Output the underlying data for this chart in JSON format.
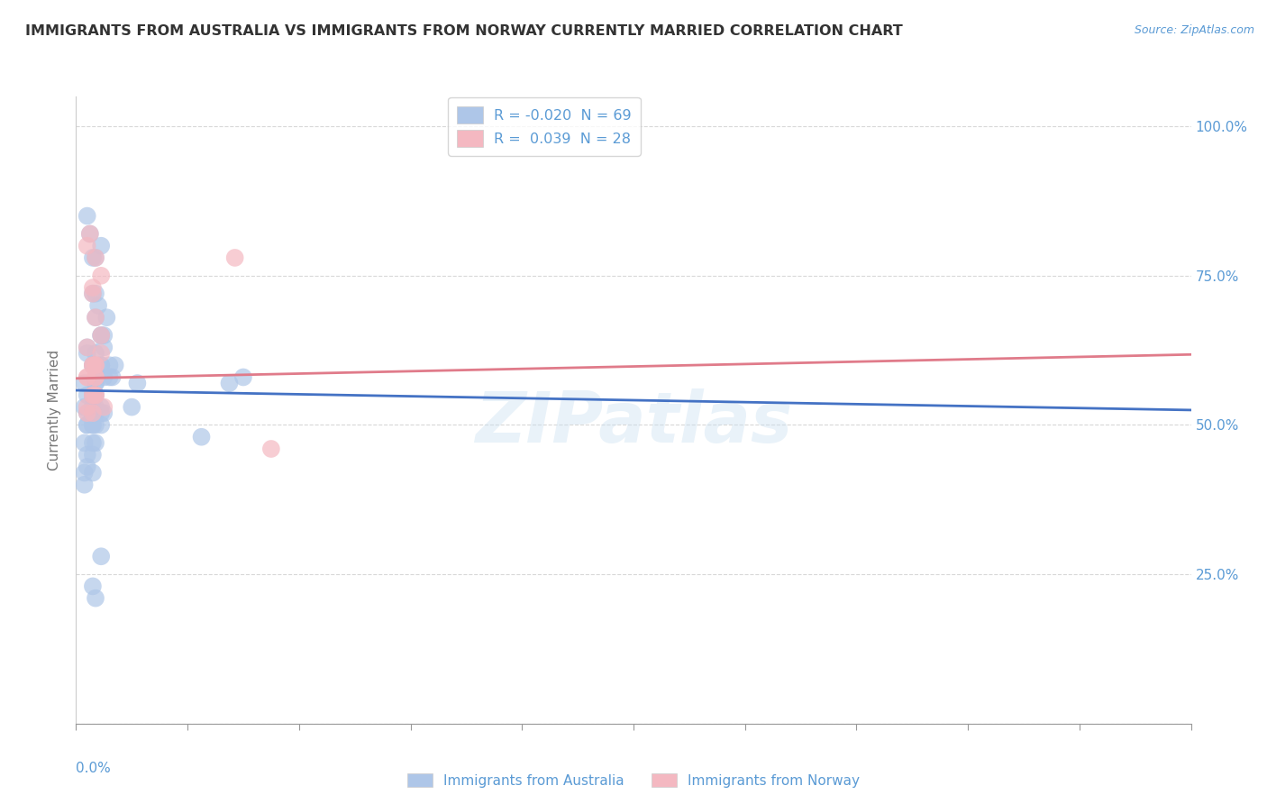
{
  "title": "IMMIGRANTS FROM AUSTRALIA VS IMMIGRANTS FROM NORWAY CURRENTLY MARRIED CORRELATION CHART",
  "source": "Source: ZipAtlas.com",
  "ylabel": "Currently Married",
  "yticks": [
    0.0,
    0.25,
    0.5,
    0.75,
    1.0
  ],
  "ytick_labels": [
    "",
    "25.0%",
    "50.0%",
    "75.0%",
    "100.0%"
  ],
  "xlim": [
    0.0,
    0.4
  ],
  "ylim": [
    0.05,
    1.05
  ],
  "blue_scatter_x": [
    0.005,
    0.007,
    0.008,
    0.004,
    0.006,
    0.007,
    0.009,
    0.01,
    0.006,
    0.007,
    0.004,
    0.009,
    0.011,
    0.006,
    0.007,
    0.009,
    0.01,
    0.012,
    0.013,
    0.014,
    0.004,
    0.006,
    0.007,
    0.009,
    0.01,
    0.003,
    0.006,
    0.007,
    0.009,
    0.012,
    0.004,
    0.006,
    0.007,
    0.004,
    0.006,
    0.007,
    0.009,
    0.006,
    0.007,
    0.009,
    0.004,
    0.006,
    0.007,
    0.003,
    0.004,
    0.006,
    0.007,
    0.022,
    0.003,
    0.006,
    0.007,
    0.004,
    0.006,
    0.003,
    0.006,
    0.007,
    0.009,
    0.01,
    0.055,
    0.007,
    0.004,
    0.02,
    0.003,
    0.006,
    0.045,
    0.06,
    0.009,
    0.006,
    0.007
  ],
  "blue_scatter_y": [
    0.82,
    0.78,
    0.7,
    0.85,
    0.78,
    0.72,
    0.8,
    0.65,
    0.72,
    0.68,
    0.62,
    0.65,
    0.68,
    0.6,
    0.62,
    0.65,
    0.63,
    0.6,
    0.58,
    0.6,
    0.63,
    0.6,
    0.58,
    0.6,
    0.58,
    0.57,
    0.55,
    0.57,
    0.6,
    0.58,
    0.55,
    0.55,
    0.53,
    0.52,
    0.53,
    0.52,
    0.53,
    0.52,
    0.5,
    0.52,
    0.5,
    0.5,
    0.52,
    0.53,
    0.5,
    0.52,
    0.55,
    0.57,
    0.47,
    0.5,
    0.52,
    0.45,
    0.47,
    0.42,
    0.45,
    0.47,
    0.5,
    0.52,
    0.57,
    0.57,
    0.43,
    0.53,
    0.4,
    0.42,
    0.48,
    0.58,
    0.28,
    0.23,
    0.21
  ],
  "pink_scatter_x": [
    0.005,
    0.007,
    0.004,
    0.006,
    0.009,
    0.006,
    0.007,
    0.009,
    0.004,
    0.006,
    0.007,
    0.006,
    0.004,
    0.007,
    0.009,
    0.006,
    0.007,
    0.004,
    0.057,
    0.07,
    0.004,
    0.007,
    0.01,
    0.006,
    0.007,
    0.004,
    0.006,
    0.007
  ],
  "pink_scatter_y": [
    0.82,
    0.78,
    0.8,
    0.73,
    0.75,
    0.72,
    0.68,
    0.65,
    0.63,
    0.6,
    0.58,
    0.55,
    0.53,
    0.58,
    0.62,
    0.6,
    0.55,
    0.52,
    0.78,
    0.46,
    0.58,
    0.55,
    0.53,
    0.52,
    0.6,
    0.58,
    0.55,
    0.6
  ],
  "blue_line_x": [
    0.0,
    0.4
  ],
  "blue_line_y": [
    0.558,
    0.525
  ],
  "pink_line_x": [
    0.0,
    0.4
  ],
  "pink_line_y": [
    0.578,
    0.618
  ],
  "background_color": "#ffffff",
  "grid_color": "#d8d8d8",
  "title_color": "#333333",
  "axis_label_color": "#5b9bd5",
  "scatter_blue": "#aec6e8",
  "scatter_pink": "#f4b8c1",
  "line_blue": "#4472c4",
  "line_pink": "#e07b8a",
  "watermark": "ZIPatlas",
  "legend_label_1": "R = -0.020  N = 69",
  "legend_label_2": "R =  0.039  N = 28",
  "bottom_label_1": "Immigrants from Australia",
  "bottom_label_2": "Immigrants from Norway"
}
